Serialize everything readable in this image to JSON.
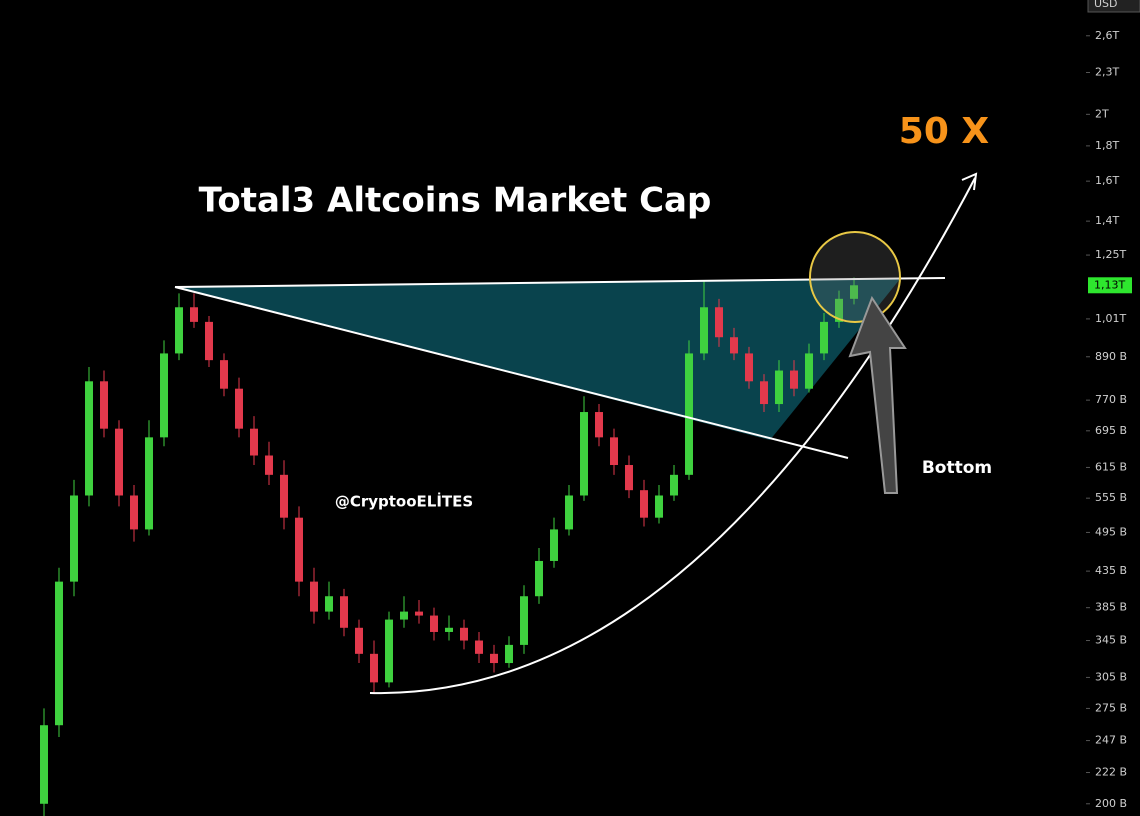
{
  "chart_data": {
    "type": "candlestick",
    "title": "Total3 Altcoins Market Cap",
    "annotations": {
      "target": "50 X",
      "bottom": "Bottom",
      "watermark": "@CryptooELİTES"
    },
    "currency": "USD",
    "log_scale": true,
    "up_color": "#3fd13f",
    "down_color": "#e2394c",
    "categories": [
      null,
      null,
      null,
      null,
      null,
      null,
      null,
      null,
      null,
      null,
      null,
      null,
      null,
      null,
      null,
      null,
      null,
      null,
      null,
      null,
      null,
      null,
      null,
      null,
      null,
      null,
      null,
      null,
      null,
      null,
      null,
      null,
      null,
      null,
      null,
      null,
      null,
      null,
      null,
      null,
      null,
      null,
      null,
      null,
      null,
      null,
      null,
      null,
      null,
      null,
      null,
      null,
      null,
      null,
      null
    ],
    "open": [
      200,
      260,
      420,
      560,
      820,
      700,
      560,
      500,
      680,
      900,
      1050,
      1000,
      880,
      800,
      700,
      640,
      600,
      520,
      420,
      380,
      400,
      360,
      330,
      300,
      370,
      380,
      375,
      355,
      360,
      345,
      330,
      320,
      340,
      400,
      450,
      500,
      560,
      740,
      680,
      620,
      570,
      520,
      560,
      600,
      900,
      1050,
      950,
      900,
      820,
      760,
      850,
      800,
      900,
      1000,
      1080
    ],
    "high": [
      275,
      440,
      590,
      860,
      850,
      720,
      580,
      720,
      940,
      1100,
      1100,
      1020,
      900,
      830,
      730,
      670,
      630,
      540,
      440,
      420,
      410,
      370,
      345,
      380,
      400,
      395,
      385,
      375,
      370,
      355,
      340,
      350,
      415,
      470,
      520,
      580,
      780,
      760,
      700,
      640,
      590,
      580,
      620,
      940,
      1150,
      1080,
      980,
      920,
      840,
      880,
      880,
      930,
      1030,
      1110,
      1160
    ],
    "low": [
      190,
      250,
      400,
      540,
      680,
      540,
      480,
      490,
      660,
      880,
      980,
      860,
      780,
      680,
      620,
      580,
      500,
      400,
      365,
      370,
      350,
      320,
      290,
      295,
      360,
      365,
      345,
      345,
      335,
      320,
      310,
      315,
      330,
      390,
      440,
      490,
      550,
      660,
      600,
      555,
      505,
      510,
      550,
      590,
      880,
      920,
      880,
      800,
      740,
      740,
      780,
      790,
      880,
      980,
      1060
    ],
    "close": [
      260,
      420,
      560,
      820,
      700,
      560,
      500,
      680,
      900,
      1050,
      1000,
      880,
      800,
      700,
      640,
      600,
      520,
      420,
      380,
      400,
      360,
      330,
      300,
      370,
      380,
      375,
      355,
      360,
      345,
      330,
      320,
      340,
      400,
      450,
      500,
      560,
      740,
      680,
      620,
      570,
      520,
      560,
      600,
      900,
      1050,
      950,
      900,
      820,
      760,
      850,
      800,
      900,
      1000,
      1080,
      1130
    ],
    "last_price": {
      "value": 1130,
      "label": "1,13T"
    },
    "ylim": [
      2930,
      192
    ],
    "yticks": [
      {
        "value": 2600,
        "label": "2,6T"
      },
      {
        "value": 2300,
        "label": "2,3T"
      },
      {
        "value": 2000,
        "label": "2T"
      },
      {
        "value": 1800,
        "label": "1,8T"
      },
      {
        "value": 1600,
        "label": "1,6T"
      },
      {
        "value": 1400,
        "label": "1,4T"
      },
      {
        "value": 1250,
        "label": "1,25T"
      },
      {
        "value": 1010,
        "label": "1,01T"
      },
      {
        "value": 890,
        "label": "890 B"
      },
      {
        "value": 770,
        "label": "770 B"
      },
      {
        "value": 695,
        "label": "695 B"
      },
      {
        "value": 615,
        "label": "615 B"
      },
      {
        "value": 555,
        "label": "555 B"
      },
      {
        "value": 495,
        "label": "495 B"
      },
      {
        "value": 435,
        "label": "435 B"
      },
      {
        "value": 385,
        "label": "385 B"
      },
      {
        "value": 345,
        "label": "345 B"
      },
      {
        "value": 305,
        "label": "305 B"
      },
      {
        "value": 275,
        "label": "275 B"
      },
      {
        "value": 247,
        "label": "247 B"
      },
      {
        "value": 222,
        "label": "222 B"
      },
      {
        "value": 200,
        "label": "200 B"
      }
    ]
  }
}
